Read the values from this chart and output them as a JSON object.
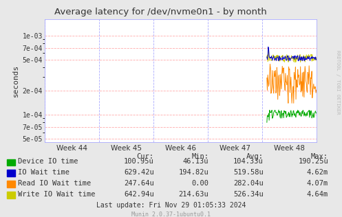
{
  "title": "Average latency for /dev/nvme0n1 - by month",
  "ylabel": "seconds",
  "background_color": "#e8e8e8",
  "plot_bg_color": "#ffffff",
  "grid_color_h": "#ffaaaa",
  "grid_color_v": "#aaaaff",
  "x_tick_labels": [
    "Week 44",
    "Week 45",
    "Week 46",
    "Week 47",
    "Week 48"
  ],
  "ylim_min": 4.5e-05,
  "ylim_max": 0.0016,
  "legend_entries": [
    "Device IO time",
    "IO Wait time",
    "Read IO Wait time",
    "Write IO Wait time"
  ],
  "legend_colors": [
    "#00aa00",
    "#0000cc",
    "#ff8800",
    "#cccc00"
  ],
  "table_headers": [
    "Cur:",
    "Min:",
    "Avg:",
    "Max:"
  ],
  "table_rows": [
    [
      "100.95u",
      "46.13u",
      "104.33u",
      "190.25u"
    ],
    [
      "629.42u",
      "194.82u",
      "519.58u",
      "4.62m"
    ],
    [
      "247.64u",
      "0.00",
      "282.04u",
      "4.07m"
    ],
    [
      "642.94u",
      "214.63u",
      "526.34u",
      "4.64m"
    ]
  ],
  "footer": "Last update: Fri Nov 29 01:05:33 2024",
  "munin_version": "Munin 2.0.37-1ubuntu0.1",
  "rrdtool_text": "RRDTOOL / TOBI OETIKER",
  "yticks": [
    5e-05,
    7e-05,
    0.0001,
    0.0002,
    0.0005,
    0.0007,
    0.001
  ],
  "ytick_labels": [
    "5e-05",
    "7e-05",
    "1e-04",
    "2e-04",
    "5e-04",
    "7e-04",
    "1e-03"
  ]
}
